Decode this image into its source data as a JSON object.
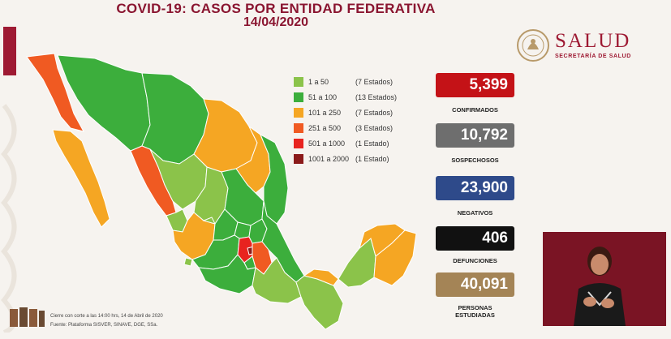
{
  "title": "COVID-19: CASOS POR ENTIDAD FEDERATIVA",
  "date": "14/04/2020",
  "colors": {
    "burgundy": "#9e1a33",
    "range_1": "#8bc34a",
    "range_2": "#3cae3c",
    "range_3": "#f5a623",
    "range_4": "#f05a22",
    "range_5": "#e8231f",
    "range_6": "#8b1a1a",
    "confirmados": "#c41217",
    "sospechosos": "#6e6e6e",
    "negativos": "#2e4a8a",
    "defunciones": "#111111",
    "estudiadas": "#a48456"
  },
  "legend": [
    {
      "range": "1 a 50",
      "count": "(7 Estados)",
      "color": "#8bc34a"
    },
    {
      "range": "51 a 100",
      "count": "(13 Estados)",
      "color": "#3cae3c"
    },
    {
      "range": "101 a 250",
      "count": "(7 Estados)",
      "color": "#f5a623"
    },
    {
      "range": "251 a 500",
      "count": "(3 Estados)",
      "color": "#f05a22"
    },
    {
      "range": "501 a 1000",
      "count": "(1 Estado)",
      "color": "#e8231f"
    },
    {
      "range": "1001 a 2000",
      "count": "(1 Estado)",
      "color": "#8b1a1a"
    }
  ],
  "stats": {
    "confirmados": {
      "value": "5,399",
      "label": "CONFIRMADOS"
    },
    "sospechosos": {
      "value": "10,792",
      "label": "SOSPECHOSOS"
    },
    "negativos": {
      "value": "23,900",
      "label": "NEGATIVOS"
    },
    "defunciones": {
      "value": "406",
      "label": "DEFUNCIONES"
    },
    "estudiadas": {
      "value": "40,091",
      "label_line1": "PERSONAS",
      "label_line2": "ESTUDIADAS"
    }
  },
  "brand": {
    "name": "SALUD",
    "subtitle": "SECRETARÍA DE SALUD"
  },
  "footer": {
    "cutoff": "Cierre con corte a las 14:00 hrs, 14 de Abril de 2020",
    "source": "Fuente: Plataforma SISVER, SINAVE, DGE, SSa."
  }
}
